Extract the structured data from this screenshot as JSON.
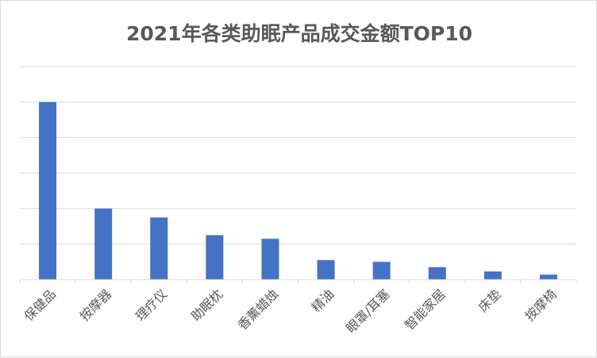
{
  "chart_data": {
    "type": "bar",
    "title": "2021年各类助眠产品成交金额TOP10",
    "categories": [
      "保健品",
      "按摩器",
      "理疗仪",
      "助眠枕",
      "香薰蜡烛",
      "精油",
      "眼罩/耳塞",
      "智能家居",
      "床垫",
      "按摩椅"
    ],
    "values": [
      5.0,
      2.0,
      1.75,
      1.25,
      1.15,
      0.55,
      0.5,
      0.35,
      0.23,
      0.14
    ],
    "ylim": [
      0,
      6
    ],
    "y_tick_labels_visible": false,
    "grid": true,
    "xlabel": "",
    "ylabel": "",
    "bar_color": "#4472c4",
    "grid_color": "#d9d9d9"
  }
}
